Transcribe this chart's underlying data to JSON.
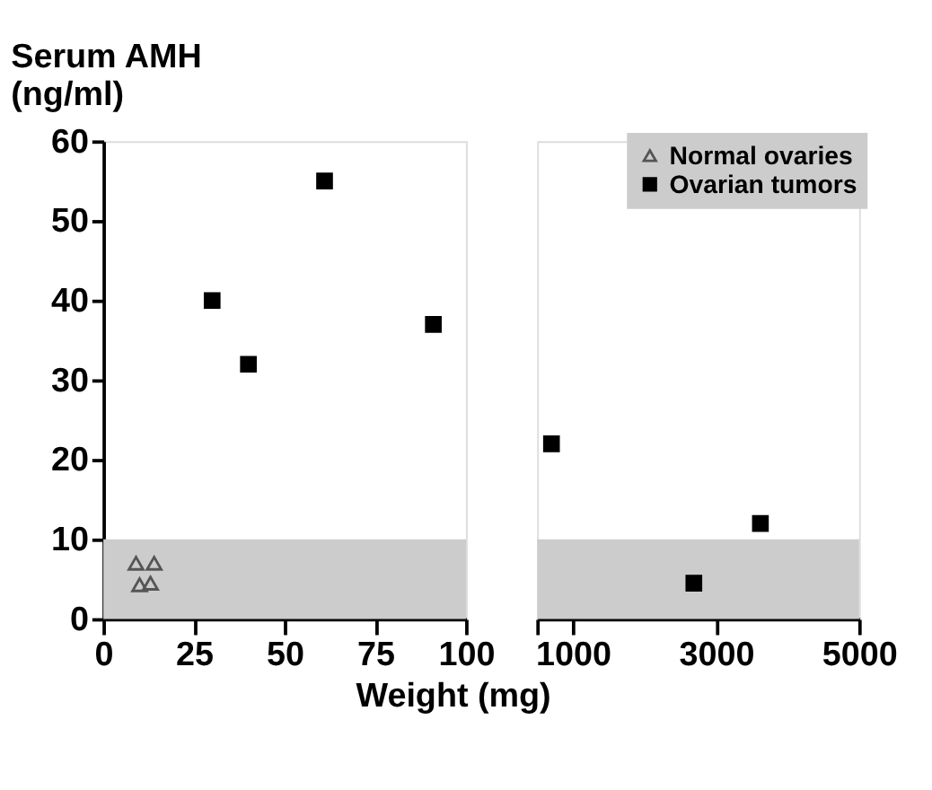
{
  "chart_data": [
    {
      "type": "scatter",
      "ylabel": "Serum AMH\n(ng/ml)",
      "xlabel": "Weight (mg)",
      "xlim": [
        0,
        100
      ],
      "xticks": [
        0,
        25,
        50,
        75,
        100
      ],
      "ylim": [
        0,
        60
      ],
      "yticks": [
        0,
        10,
        20,
        30,
        40,
        50,
        60
      ],
      "grid": false,
      "legend": "top right",
      "bands": [
        {
          "axis": "y",
          "from": 0,
          "to": 10,
          "color": "#cccccc"
        }
      ],
      "series": [
        {
          "name": "Normal ovaries",
          "color": "#555555",
          "marker": "triangle",
          "x": [
            9,
            14,
            10,
            13
          ],
          "values": [
            7,
            7,
            4.3,
            4.5
          ]
        },
        {
          "name": "Ovarian tumors",
          "color": "#000000",
          "marker": "square",
          "x": [
            30,
            40,
            61,
            91
          ],
          "values": [
            40,
            32,
            55,
            37
          ]
        }
      ]
    },
    {
      "type": "scatter",
      "xlim": [
        500,
        5000
      ],
      "xticks": [
        {
          "value": 500,
          "label": null
        },
        1000,
        3000,
        5000
      ],
      "ylim": [
        0,
        60
      ],
      "grid": false,
      "tick_labels": "x",
      "bands": [
        {
          "axis": "y",
          "from": 0,
          "to": 10,
          "color": "#cccccc"
        }
      ],
      "series": [
        {
          "color": "#000000",
          "marker": "square",
          "x": [
            700,
            2690,
            3620
          ],
          "values": [
            22,
            4.5,
            12
          ]
        }
      ]
    }
  ]
}
